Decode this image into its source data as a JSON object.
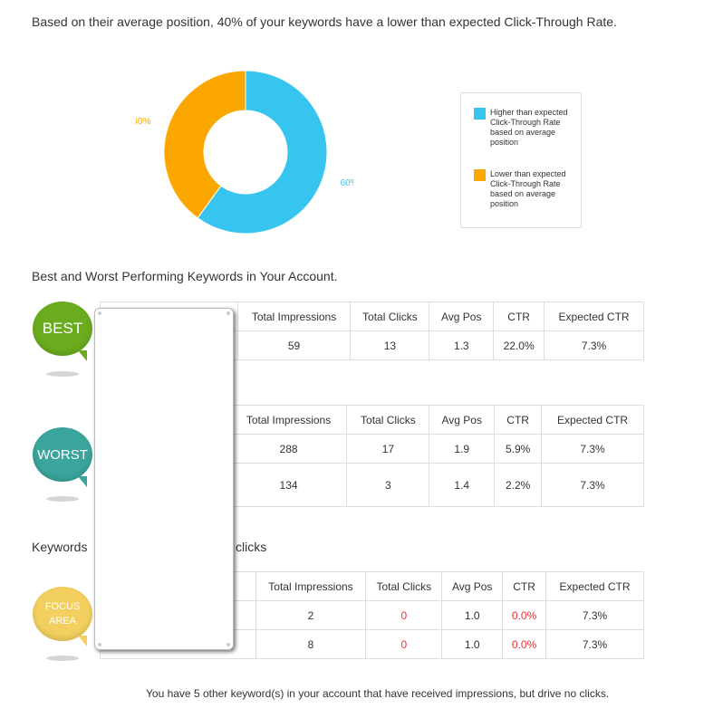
{
  "summary": {
    "headline": "Based on their average position, 40% of your keywords have a lower than expected Click-Through Rate."
  },
  "chart_data": {
    "type": "pie",
    "categories": [
      "Higher than expected Click-Through Rate based on average position",
      "Lower than expected Click-Through Rate based on average position"
    ],
    "values": [
      60,
      40
    ],
    "labels": [
      "60%",
      "40%"
    ],
    "colors": [
      "#37c5f0",
      "#fca600"
    ],
    "legend_position": "right",
    "donut": true
  },
  "best_worst": {
    "heading": "Best and Worst Performing Keywords in Your Account."
  },
  "columns": [
    "Total Impressions",
    "Total Clicks",
    "Avg Pos",
    "CTR",
    "Expected CTR"
  ],
  "best": {
    "badge": "BEST",
    "rows": [
      {
        "impressions": "59",
        "clicks": "13",
        "avg_pos": "1.3",
        "ctr": "22.0%",
        "expected_ctr": "7.3%"
      }
    ]
  },
  "worst": {
    "badge": "WORST",
    "rows": [
      {
        "impressions": "288",
        "clicks": "17",
        "avg_pos": "1.9",
        "ctr": "5.9%",
        "expected_ctr": "7.3%"
      },
      {
        "impressions": "134",
        "clicks": "3",
        "avg_pos": "1.4",
        "ctr": "2.2%",
        "expected_ctr": "7.3%"
      }
    ]
  },
  "focus": {
    "heading_start": "Keywords",
    "heading_end": "clicks",
    "badge_line1": "FOCUS",
    "badge_line2": "AREA",
    "rows": [
      {
        "impressions": "2",
        "clicks": "0",
        "avg_pos": "1.0",
        "ctr": "0.0%",
        "expected_ctr": "7.3%"
      },
      {
        "impressions": "8",
        "clicks": "0",
        "avg_pos": "1.0",
        "ctr": "0.0%",
        "expected_ctr": "7.3%"
      }
    ]
  },
  "footer": {
    "note": "You have 5 other keyword(s) in your account that have received impressions, but drive no clicks."
  },
  "colors": {
    "best_badge": "#6aac1e",
    "worst_badge": "#3aa59c",
    "focus_badge": "#f2cf5e",
    "zero_value": "#ee3333"
  }
}
